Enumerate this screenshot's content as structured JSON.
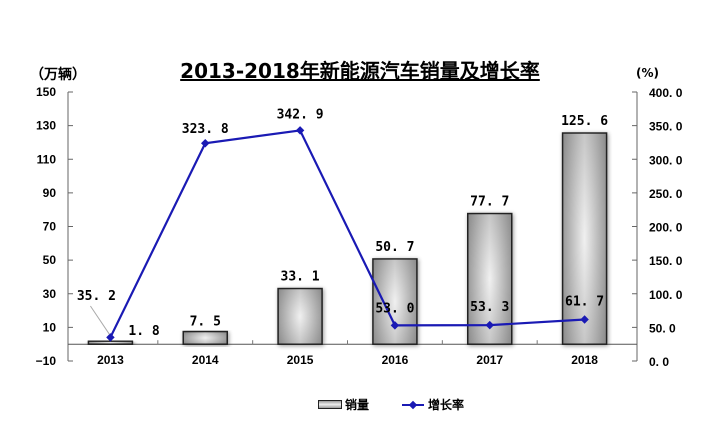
{
  "chart_data": {
    "type": "bar+line",
    "title": "2013-2018年新能源汽车销量及增长率",
    "categories": [
      "2013",
      "2014",
      "2015",
      "2016",
      "2017",
      "2018"
    ],
    "series": [
      {
        "name": "销量",
        "type": "bar",
        "axis": "left",
        "values": [
          1.8,
          7.5,
          33.1,
          50.7,
          77.7,
          125.6
        ],
        "labels": [
          "1.8",
          "7.5",
          "33.1",
          "50.7",
          "77.7",
          "125.6"
        ]
      },
      {
        "name": "增长率",
        "type": "line",
        "axis": "right",
        "color": "#1a1ab4",
        "values": [
          35.2,
          323.8,
          342.9,
          53.0,
          53.3,
          61.7
        ],
        "labels": [
          "35.2",
          "323.8",
          "342.9",
          "53.0",
          "53.3",
          "61.7"
        ]
      }
    ],
    "left_axis": {
      "label": "（万辆）",
      "ylim": [
        -10,
        150
      ],
      "ticks": [
        "150",
        "130",
        "110",
        "90",
        "70",
        "50",
        "30",
        "10",
        "-10"
      ]
    },
    "right_axis": {
      "label": "(%)",
      "ylim": [
        0,
        400
      ],
      "ticks": [
        "400.0",
        "350.0",
        "300.0",
        "250.0",
        "200.0",
        "150.0",
        "100.0",
        "50.0",
        "0.0"
      ]
    },
    "grid": false,
    "legend_position": "bottom",
    "legend": [
      "销量",
      "增长率"
    ]
  },
  "header": {
    "title": "2013-2018年新能源汽车销量及增长率",
    "left_unit": "（万辆）",
    "right_unit": "(%)"
  },
  "legend": {
    "bar_label": "销量",
    "line_label": "增长率"
  }
}
